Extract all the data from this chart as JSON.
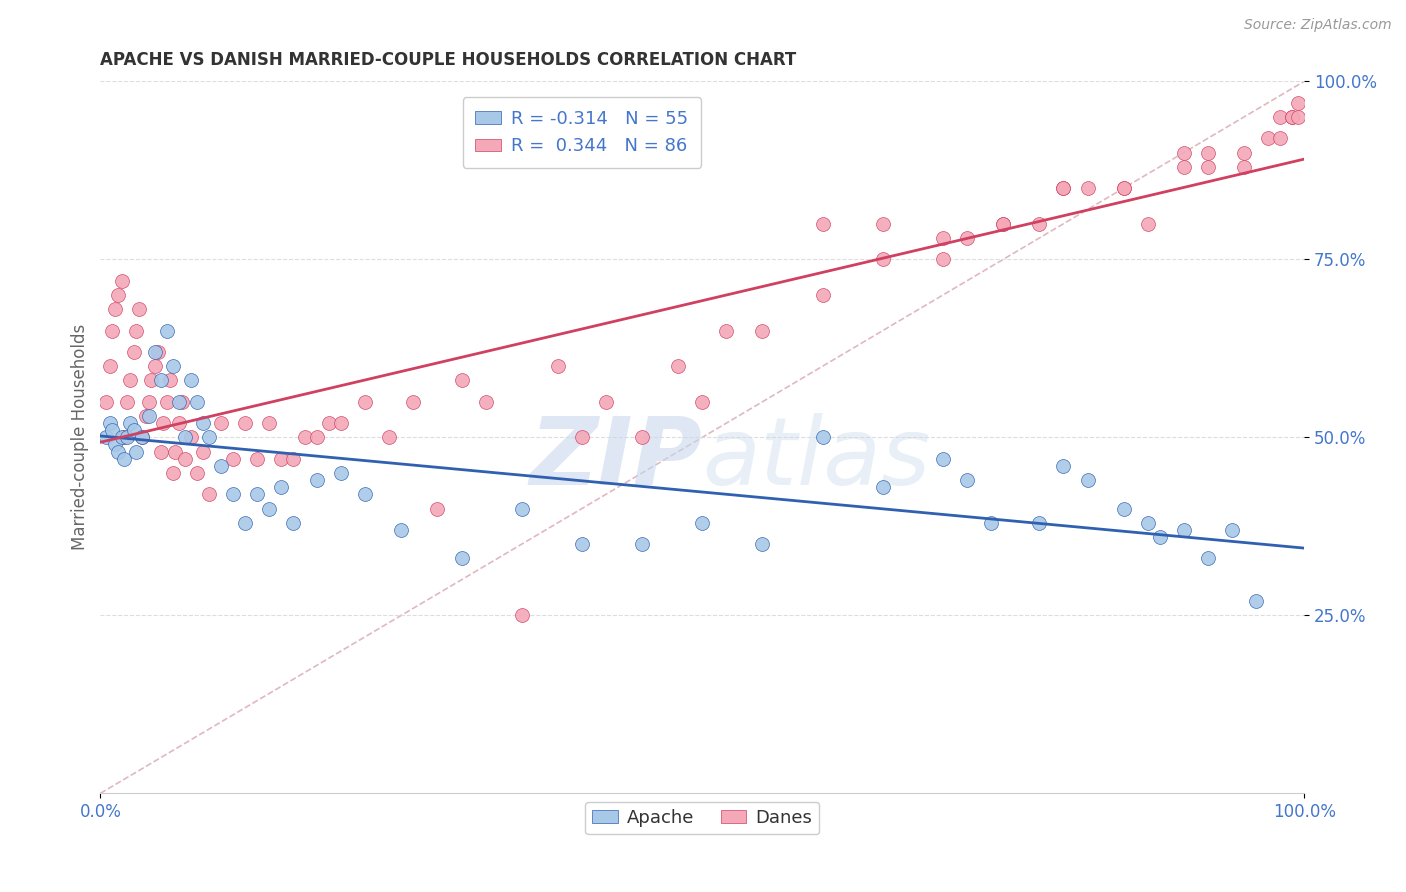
{
  "title": "APACHE VS DANISH MARRIED-COUPLE HOUSEHOLDS CORRELATION CHART",
  "source": "Source: ZipAtlas.com",
  "ylabel": "Married-couple Households",
  "xlim": [
    0,
    1
  ],
  "ylim": [
    0,
    1
  ],
  "yticks": [
    0.25,
    0.5,
    0.75,
    1.0
  ],
  "ytick_labels": [
    "25.0%",
    "50.0%",
    "75.0%",
    "100.0%"
  ],
  "xtick_labels": [
    "0.0%",
    "100.0%"
  ],
  "apache_color": "#a8c8e8",
  "danes_color": "#f4a8b8",
  "apache_line_color": "#3060b0",
  "danes_line_color": "#d04060",
  "diagonal_color": "#e0b8c0",
  "legend_r_apache": "R = -0.314",
  "legend_n_apache": "N = 55",
  "legend_r_danes": "R =  0.344",
  "legend_n_danes": "N = 86",
  "apache_x": [
    0.005,
    0.008,
    0.01,
    0.012,
    0.015,
    0.018,
    0.02,
    0.022,
    0.025,
    0.028,
    0.03,
    0.035,
    0.04,
    0.045,
    0.05,
    0.055,
    0.06,
    0.065,
    0.07,
    0.075,
    0.08,
    0.085,
    0.09,
    0.1,
    0.11,
    0.12,
    0.13,
    0.14,
    0.15,
    0.16,
    0.18,
    0.2,
    0.22,
    0.25,
    0.3,
    0.35,
    0.4,
    0.45,
    0.5,
    0.55,
    0.6,
    0.65,
    0.7,
    0.72,
    0.74,
    0.78,
    0.8,
    0.82,
    0.85,
    0.87,
    0.88,
    0.9,
    0.92,
    0.94,
    0.96
  ],
  "apache_y": [
    0.5,
    0.52,
    0.51,
    0.49,
    0.48,
    0.5,
    0.47,
    0.5,
    0.52,
    0.51,
    0.48,
    0.5,
    0.53,
    0.62,
    0.58,
    0.65,
    0.6,
    0.55,
    0.5,
    0.58,
    0.55,
    0.52,
    0.5,
    0.46,
    0.42,
    0.38,
    0.42,
    0.4,
    0.43,
    0.38,
    0.44,
    0.45,
    0.42,
    0.37,
    0.33,
    0.4,
    0.35,
    0.35,
    0.38,
    0.35,
    0.5,
    0.43,
    0.47,
    0.44,
    0.38,
    0.38,
    0.46,
    0.44,
    0.4,
    0.38,
    0.36,
    0.37,
    0.33,
    0.37,
    0.27
  ],
  "danes_x": [
    0.005,
    0.008,
    0.01,
    0.012,
    0.015,
    0.018,
    0.02,
    0.022,
    0.025,
    0.028,
    0.03,
    0.032,
    0.035,
    0.038,
    0.04,
    0.042,
    0.045,
    0.048,
    0.05,
    0.052,
    0.055,
    0.058,
    0.06,
    0.062,
    0.065,
    0.068,
    0.07,
    0.075,
    0.08,
    0.085,
    0.09,
    0.1,
    0.11,
    0.12,
    0.13,
    0.14,
    0.15,
    0.16,
    0.17,
    0.18,
    0.19,
    0.2,
    0.22,
    0.24,
    0.26,
    0.28,
    0.3,
    0.32,
    0.35,
    0.38,
    0.4,
    0.42,
    0.45,
    0.48,
    0.5,
    0.52,
    0.55,
    0.6,
    0.65,
    0.7,
    0.72,
    0.75,
    0.78,
    0.8,
    0.82,
    0.85,
    0.87,
    0.9,
    0.92,
    0.95,
    0.6,
    0.65,
    0.7,
    0.75,
    0.8,
    0.85,
    0.9,
    0.92,
    0.95,
    0.97,
    0.98,
    0.98,
    0.99,
    0.99,
    0.995,
    0.995
  ],
  "danes_y": [
    0.55,
    0.6,
    0.65,
    0.68,
    0.7,
    0.72,
    0.5,
    0.55,
    0.58,
    0.62,
    0.65,
    0.68,
    0.5,
    0.53,
    0.55,
    0.58,
    0.6,
    0.62,
    0.48,
    0.52,
    0.55,
    0.58,
    0.45,
    0.48,
    0.52,
    0.55,
    0.47,
    0.5,
    0.45,
    0.48,
    0.42,
    0.52,
    0.47,
    0.52,
    0.47,
    0.52,
    0.47,
    0.47,
    0.5,
    0.5,
    0.52,
    0.52,
    0.55,
    0.5,
    0.55,
    0.4,
    0.58,
    0.55,
    0.25,
    0.6,
    0.5,
    0.55,
    0.5,
    0.6,
    0.55,
    0.65,
    0.65,
    0.7,
    0.75,
    0.75,
    0.78,
    0.8,
    0.8,
    0.85,
    0.85,
    0.85,
    0.8,
    0.9,
    0.88,
    0.88,
    0.8,
    0.8,
    0.78,
    0.8,
    0.85,
    0.85,
    0.88,
    0.9,
    0.9,
    0.92,
    0.92,
    0.95,
    0.95,
    0.95,
    0.95,
    0.97
  ],
  "watermark_zip": "ZIP",
  "watermark_atlas": "atlas",
  "background_color": "#ffffff",
  "grid_color": "#dddddd",
  "tick_color": "#4477cc",
  "ylabel_color": "#666666",
  "title_color": "#333333"
}
